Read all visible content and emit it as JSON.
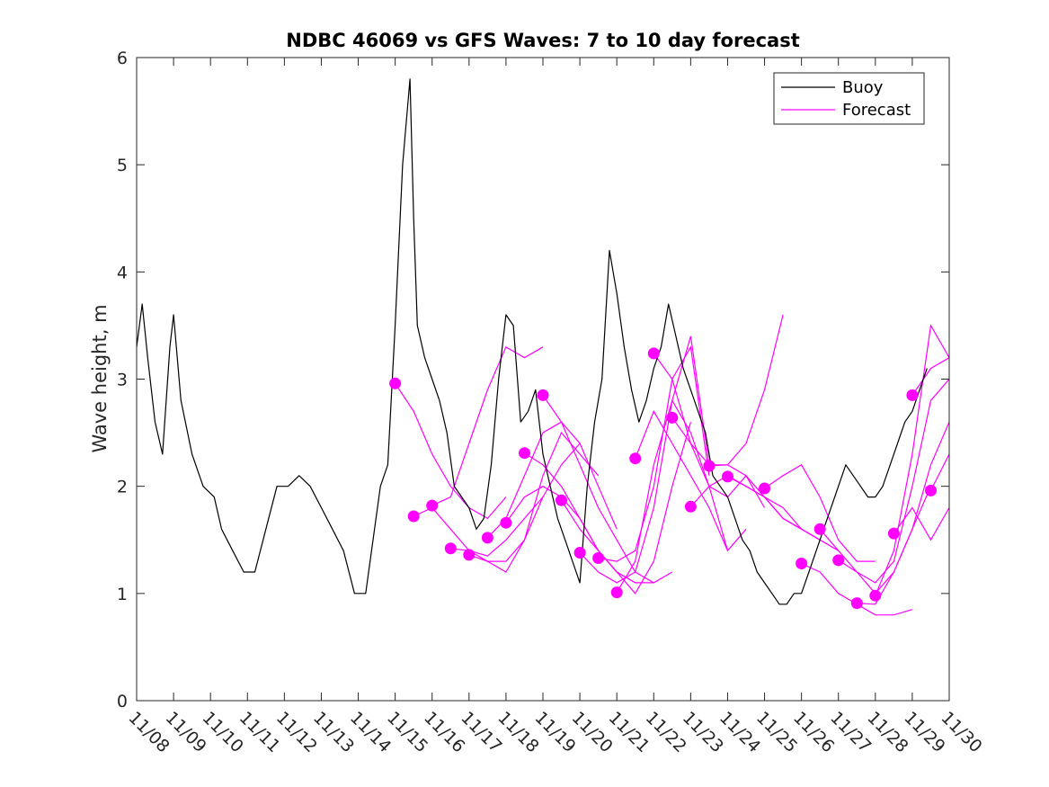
{
  "chart_data": {
    "type": "line",
    "title": "NDBC 46069 vs GFS Waves: 7 to 10 day forecast",
    "xlabel": "",
    "ylabel": "Wave height, m",
    "ylim": [
      0,
      6
    ],
    "yticks": [
      0,
      1,
      2,
      3,
      4,
      5,
      6
    ],
    "xlim": [
      0,
      22
    ],
    "xtick_labels": [
      "11/08",
      "11/09",
      "11/10",
      "11/11",
      "11/12",
      "11/13",
      "11/14",
      "11/15",
      "11/16",
      "11/17",
      "11/18",
      "11/19",
      "11/20",
      "11/21",
      "11/22",
      "11/23",
      "11/24",
      "11/25",
      "11/26",
      "11/27",
      "11/28",
      "11/29",
      "11/30"
    ],
    "legend": {
      "position": "top-right",
      "entries": [
        "Buoy",
        "Forecast"
      ]
    },
    "colors": {
      "buoy": "#000000",
      "forecast": "#ff00ff",
      "axes": "#262626"
    },
    "buoy_series": {
      "name": "Buoy",
      "x": [
        0,
        0.15,
        0.3,
        0.5,
        0.7,
        0.9,
        1.0,
        1.2,
        1.5,
        1.8,
        2.1,
        2.3,
        2.6,
        2.9,
        3.2,
        3.5,
        3.8,
        4.1,
        4.4,
        4.7,
        5.0,
        5.3,
        5.6,
        5.9,
        6.2,
        6.4,
        6.6,
        6.8,
        7.0,
        7.2,
        7.4,
        7.5,
        7.6,
        7.8,
        8.0,
        8.2,
        8.4,
        8.6,
        8.8,
        9.0,
        9.2,
        9.4,
        9.6,
        9.8,
        10.0,
        10.2,
        10.4,
        10.6,
        10.8,
        11.0,
        11.2,
        11.4,
        11.6,
        11.8,
        12.0,
        12.2,
        12.4,
        12.6,
        12.8,
        13.0,
        13.2,
        13.4,
        13.6,
        13.8,
        14.0,
        14.2,
        14.4,
        14.6,
        14.8,
        15.0,
        15.2,
        15.4,
        15.6,
        15.8,
        16.0,
        16.2,
        16.4,
        16.6,
        16.8,
        17.0,
        17.2,
        17.4,
        17.6,
        17.8,
        18.0,
        18.2,
        18.4,
        18.6,
        18.8,
        19.0,
        19.2,
        19.4,
        19.6,
        19.8,
        20.0,
        20.2,
        20.4,
        20.6,
        20.8,
        21.0,
        21.2,
        21.4
      ],
      "y": [
        3.3,
        3.7,
        3.2,
        2.6,
        2.3,
        3.3,
        3.6,
        2.8,
        2.3,
        2.0,
        1.9,
        1.6,
        1.4,
        1.2,
        1.2,
        1.6,
        2.0,
        2.0,
        2.1,
        2.0,
        1.8,
        1.6,
        1.4,
        1.0,
        1.0,
        1.5,
        2.0,
        2.2,
        3.5,
        5.0,
        5.8,
        4.5,
        3.5,
        3.2,
        3.0,
        2.8,
        2.5,
        2.0,
        1.9,
        1.8,
        1.6,
        1.7,
        2.2,
        3.0,
        3.6,
        3.5,
        2.6,
        2.7,
        2.9,
        2.3,
        2.0,
        1.7,
        1.5,
        1.3,
        1.1,
        2.0,
        2.6,
        3.0,
        4.2,
        3.8,
        3.3,
        2.9,
        2.6,
        2.8,
        3.1,
        3.3,
        3.7,
        3.4,
        3.1,
        2.9,
        2.7,
        2.5,
        2.1,
        2.0,
        1.9,
        1.7,
        1.5,
        1.4,
        1.2,
        1.1,
        1.0,
        0.9,
        0.9,
        1.0,
        1.0,
        1.2,
        1.4,
        1.6,
        1.8,
        2.0,
        2.2,
        2.1,
        2.0,
        1.9,
        1.9,
        2.0,
        2.2,
        2.4,
        2.6,
        2.7,
        2.9,
        3.1
      ]
    },
    "forecast_series": [
      {
        "name": "Forecast",
        "x": [
          7.0,
          7.5,
          8.0,
          8.5,
          9.0,
          9.5,
          10.0
        ],
        "y": [
          2.96,
          2.7,
          2.3,
          2.0,
          1.8,
          1.7,
          1.9
        ]
      },
      {
        "name": "Forecast",
        "x": [
          7.5,
          8.0,
          8.5,
          9.0,
          9.5,
          10.0,
          10.5,
          11.0
        ],
        "y": [
          1.72,
          1.8,
          1.6,
          1.4,
          1.35,
          1.5,
          1.7,
          1.9
        ]
      },
      {
        "name": "Forecast",
        "x": [
          8.0,
          8.5,
          9.0,
          9.5,
          10.0,
          10.5,
          11.0
        ],
        "y": [
          1.82,
          1.9,
          2.4,
          2.9,
          3.3,
          3.2,
          3.3
        ]
      },
      {
        "name": "Forecast",
        "x": [
          8.5,
          9.0,
          9.5,
          10.0,
          10.5,
          11.0,
          11.5,
          12.0
        ],
        "y": [
          1.42,
          1.4,
          1.3,
          1.3,
          1.5,
          1.9,
          2.2,
          2.4
        ]
      },
      {
        "name": "Forecast",
        "x": [
          9.0,
          9.5,
          10.0,
          10.5,
          11.0,
          11.5,
          12.0,
          12.5
        ],
        "y": [
          1.36,
          1.3,
          1.2,
          1.5,
          2.1,
          2.5,
          2.3,
          2.1
        ]
      },
      {
        "name": "Forecast",
        "x": [
          9.5,
          10.0,
          10.5,
          11.0,
          11.5,
          12.0,
          12.5,
          13.0
        ],
        "y": [
          1.52,
          1.7,
          2.1,
          2.5,
          2.6,
          2.4,
          2.0,
          1.6
        ]
      },
      {
        "name": "Forecast",
        "x": [
          10.0,
          10.5,
          11.0,
          11.5,
          12.0,
          12.5,
          13.0,
          13.5
        ],
        "y": [
          1.66,
          1.9,
          2.0,
          1.9,
          1.7,
          1.4,
          1.2,
          1.1
        ]
      },
      {
        "name": "Forecast",
        "x": [
          10.5,
          11.0,
          11.5,
          12.0,
          12.5,
          13.0,
          13.5,
          14.0
        ],
        "y": [
          2.31,
          2.2,
          2.0,
          1.7,
          1.4,
          1.2,
          1.1,
          1.1
        ]
      },
      {
        "name": "Forecast",
        "x": [
          11.0,
          11.5,
          12.0,
          12.5,
          13.0,
          13.5,
          14.0,
          14.5
        ],
        "y": [
          2.85,
          2.6,
          2.2,
          1.8,
          1.5,
          1.2,
          1.1,
          1.2
        ]
      },
      {
        "name": "Forecast",
        "x": [
          11.5,
          12.0,
          12.5,
          13.0,
          13.5,
          14.0,
          14.5,
          15.0
        ],
        "y": [
          1.87,
          1.6,
          1.4,
          1.2,
          1.0,
          1.3,
          2.0,
          2.6
        ]
      },
      {
        "name": "Forecast",
        "x": [
          12.0,
          12.5,
          13.0,
          13.5,
          14.0,
          14.5,
          15.0,
          15.5
        ],
        "y": [
          1.38,
          1.2,
          1.1,
          1.2,
          1.8,
          2.8,
          3.4,
          2.2
        ]
      },
      {
        "name": "Forecast",
        "x": [
          12.5,
          13.0,
          13.5,
          14.0,
          14.5,
          15.0,
          15.5
        ],
        "y": [
          1.33,
          1.3,
          1.4,
          2.0,
          3.0,
          3.3,
          2.1
        ]
      },
      {
        "name": "Forecast",
        "x": [
          13.0,
          13.5,
          14.0,
          14.5,
          15.0,
          15.5,
          16.0
        ],
        "y": [
          1.01,
          1.3,
          2.2,
          2.8,
          2.5,
          2.0,
          1.4
        ]
      },
      {
        "name": "Forecast",
        "x": [
          13.5,
          14.0,
          14.5,
          15.0,
          15.5,
          16.0,
          16.5
        ],
        "y": [
          2.26,
          2.7,
          2.4,
          2.1,
          1.8,
          1.4,
          1.6
        ]
      },
      {
        "name": "Forecast",
        "x": [
          14.0,
          14.5,
          15.0,
          15.5,
          16.0,
          16.5,
          17.0
        ],
        "y": [
          3.24,
          3.0,
          2.4,
          2.0,
          1.9,
          2.1,
          1.8
        ]
      },
      {
        "name": "Forecast",
        "x": [
          14.5,
          15.0,
          15.5,
          16.0,
          16.5,
          17.0,
          17.5
        ],
        "y": [
          2.64,
          2.4,
          2.2,
          2.2,
          2.4,
          2.9,
          3.6
        ]
      },
      {
        "name": "Forecast",
        "x": [
          15.0,
          15.5,
          16.0,
          16.5,
          17.0,
          17.5,
          18.0
        ],
        "y": [
          1.81,
          2.0,
          2.1,
          2.0,
          1.9,
          1.7,
          1.6
        ]
      },
      {
        "name": "Forecast",
        "x": [
          15.5,
          16.0,
          16.5,
          17.0,
          17.5,
          18.0,
          18.5
        ],
        "y": [
          2.19,
          2.2,
          2.1,
          1.9,
          1.8,
          1.6,
          1.5
        ]
      },
      {
        "name": "Forecast",
        "x": [
          16.0,
          16.5,
          17.0,
          17.5,
          18.0,
          18.5,
          19.0
        ],
        "y": [
          2.09,
          2.0,
          1.9,
          1.7,
          1.6,
          1.5,
          1.4
        ]
      },
      {
        "name": "Forecast",
        "x": [
          17.0,
          17.5,
          18.0,
          18.5,
          19.0,
          19.5,
          20.0
        ],
        "y": [
          1.98,
          2.1,
          2.2,
          1.9,
          1.5,
          1.3,
          1.3
        ]
      },
      {
        "name": "Forecast",
        "x": [
          18.0,
          18.5,
          19.0,
          19.5,
          20.0,
          20.5,
          21.0
        ],
        "y": [
          1.28,
          1.2,
          1.0,
          0.9,
          0.8,
          0.8,
          0.85
        ]
      },
      {
        "name": "Forecast",
        "x": [
          18.5,
          19.0,
          19.5,
          20.0,
          20.5,
          21.0,
          21.5
        ],
        "y": [
          1.6,
          1.4,
          1.2,
          1.0,
          1.2,
          1.6,
          2.0
        ]
      },
      {
        "name": "Forecast",
        "x": [
          19.0,
          19.5,
          20.0,
          20.5,
          21.0,
          21.5,
          22.0
        ],
        "y": [
          1.31,
          1.2,
          1.1,
          1.3,
          2.0,
          2.8,
          3.0
        ]
      },
      {
        "name": "Forecast",
        "x": [
          19.5,
          20.0,
          20.5,
          21.0,
          21.5,
          22.0
        ],
        "y": [
          0.91,
          0.9,
          1.2,
          1.6,
          2.2,
          2.6
        ]
      },
      {
        "name": "Forecast",
        "x": [
          20.0,
          20.5,
          21.0,
          21.5,
          22.0
        ],
        "y": [
          0.98,
          1.4,
          2.3,
          3.5,
          3.2
        ]
      },
      {
        "name": "Forecast",
        "x": [
          20.5,
          21.0,
          21.5,
          22.0
        ],
        "y": [
          1.56,
          1.8,
          1.5,
          1.8
        ]
      },
      {
        "name": "Forecast",
        "x": [
          21.0,
          21.5,
          22.0
        ],
        "y": [
          2.85,
          3.1,
          3.2
        ]
      },
      {
        "name": "Forecast",
        "x": [
          21.5,
          22.0
        ],
        "y": [
          1.96,
          2.3
        ]
      }
    ],
    "forecast_markers": {
      "x": [
        7.0,
        7.5,
        8.0,
        8.5,
        9.0,
        9.5,
        10.0,
        10.5,
        11.0,
        11.5,
        12.0,
        12.5,
        13.0,
        13.5,
        14.0,
        14.5,
        15.0,
        15.5,
        16.0,
        17.0,
        18.0,
        18.5,
        19.0,
        19.5,
        20.0,
        20.5,
        21.0,
        21.5
      ],
      "y": [
        2.96,
        1.72,
        1.82,
        1.42,
        1.36,
        1.52,
        1.66,
        2.31,
        2.85,
        1.87,
        1.38,
        1.33,
        1.01,
        2.26,
        3.24,
        2.64,
        1.81,
        2.19,
        2.09,
        1.98,
        1.28,
        1.6,
        1.31,
        0.91,
        0.98,
        1.56,
        2.85,
        1.96
      ]
    }
  }
}
